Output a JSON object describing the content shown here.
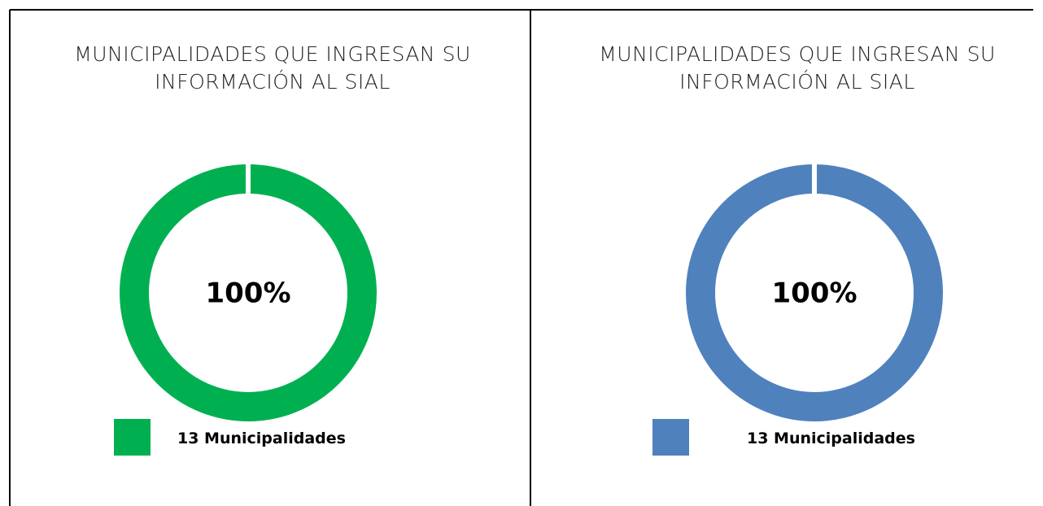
{
  "chart_data": [
    {
      "type": "doughnut",
      "title": "MUNICIPALIDADES QUE INGRESAN SU INFORMACIÓN AL SIAL",
      "categories": [
        "13 Municipalidades"
      ],
      "values": [
        100
      ],
      "value_labels": [
        "100%"
      ],
      "color": "#00b050"
    },
    {
      "type": "doughnut",
      "title": "MUNICIPALIDADES QUE INGRESAN SU INFORMACIÓN AL SIAL",
      "categories": [
        "13 Municipalidades"
      ],
      "values": [
        100
      ],
      "value_labels": [
        "100%"
      ],
      "color": "#4f81bd"
    }
  ]
}
